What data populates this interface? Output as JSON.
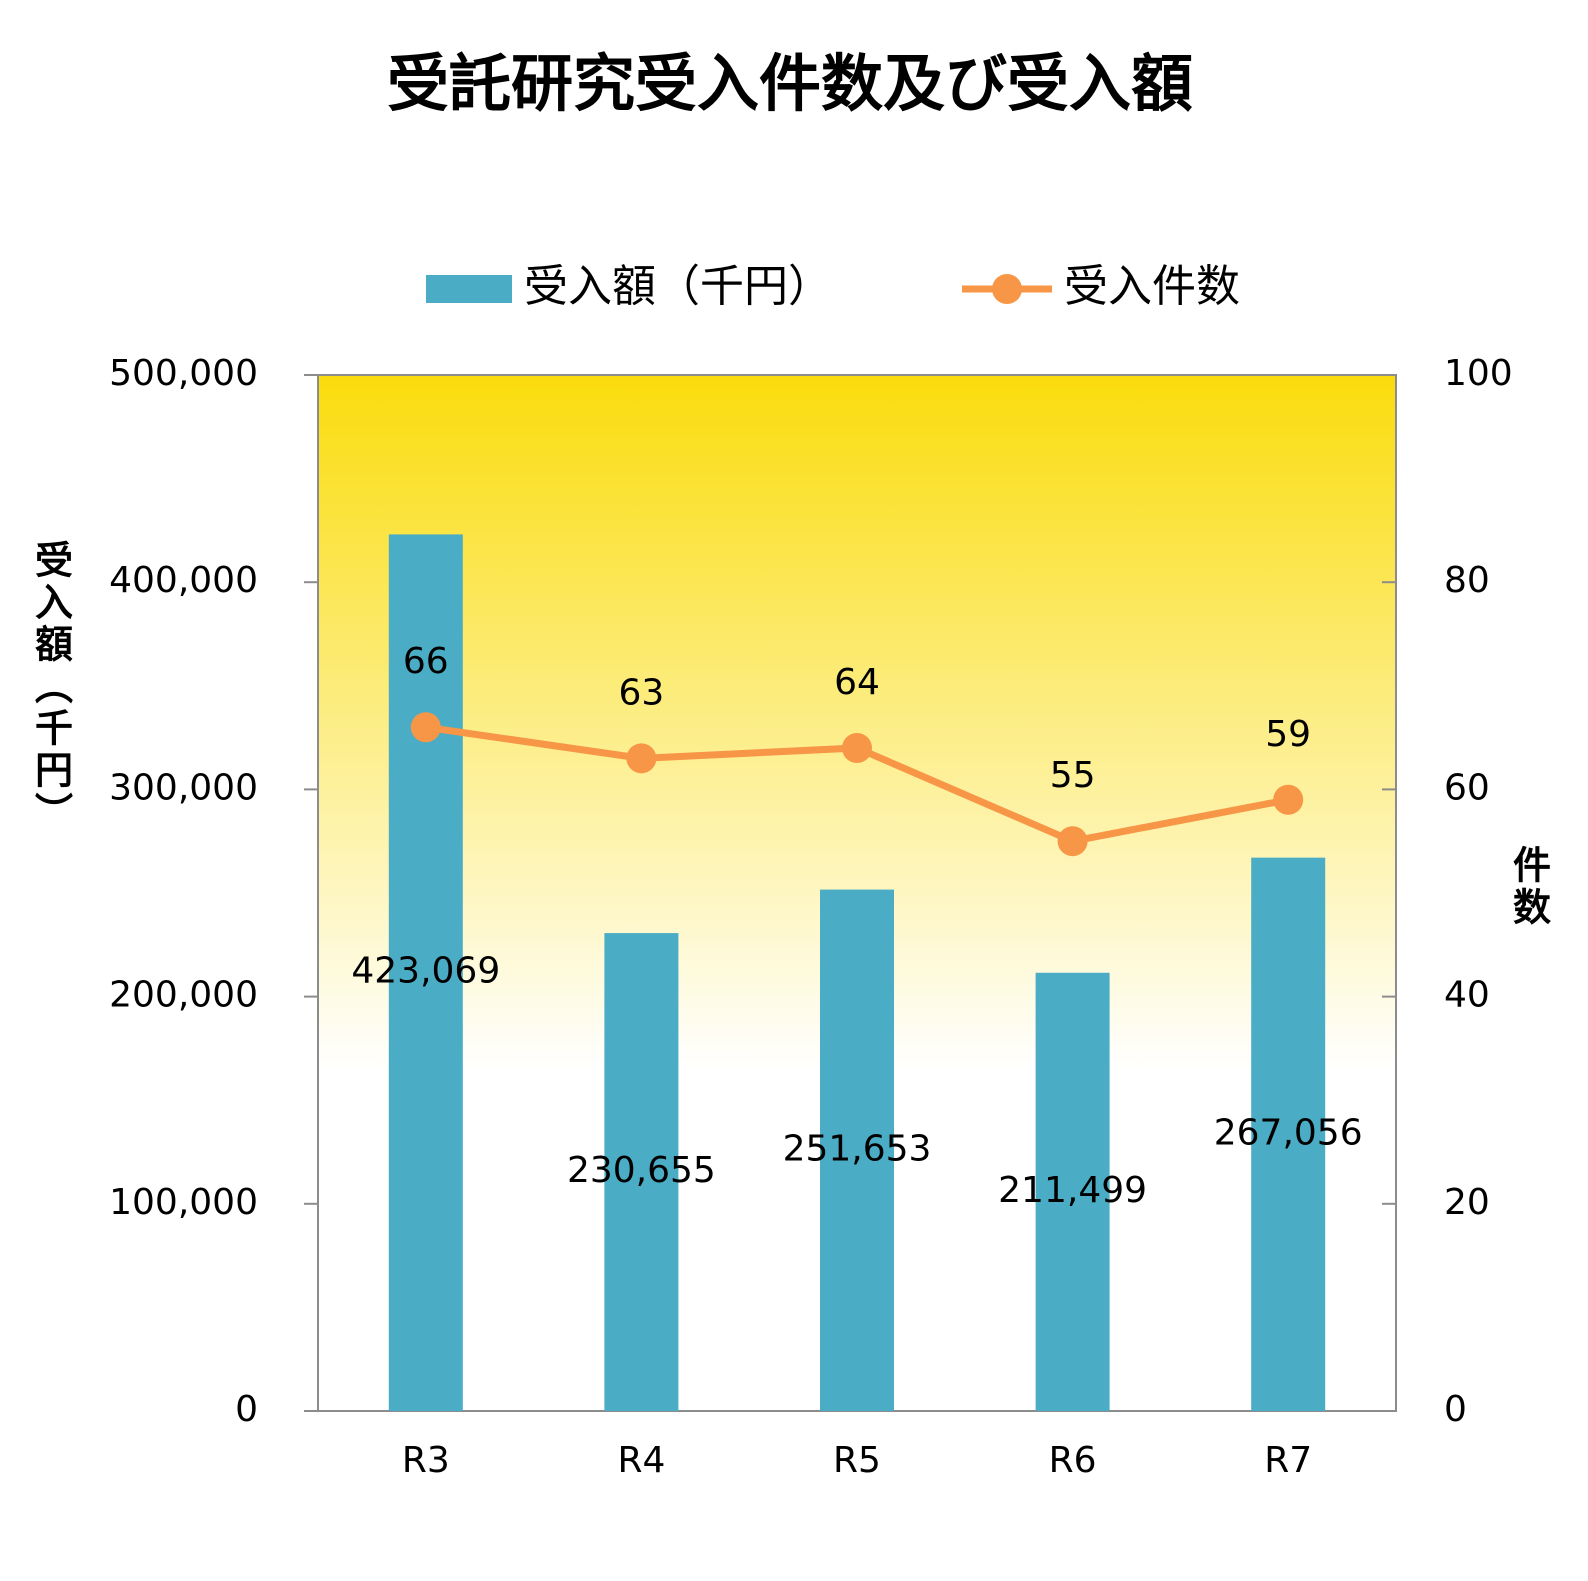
{
  "chart_data": {
    "type": "bar",
    "title": "受託研究受入件数及び受入額",
    "categories": [
      "R3",
      "R4",
      "R5",
      "R6",
      "R7"
    ],
    "series": [
      {
        "name": "受入額（千円）",
        "type": "bar",
        "color": "#4bacc6",
        "values": [
          423069,
          230655,
          251653,
          211499,
          267056
        ],
        "value_labels": [
          "423,069",
          "230,655",
          "251,653",
          "211,499",
          "267,056"
        ]
      },
      {
        "name": "受入件数",
        "type": "line",
        "axis": "y2",
        "color": "#f79646",
        "values": [
          66,
          63,
          64,
          55,
          59
        ]
      }
    ],
    "y_label": "受入額（千円）",
    "y2_label": "件数",
    "ylim": [
      0,
      500000
    ],
    "yticks": [
      0,
      {
        "value": 100000,
        "label": "100,000"
      },
      {
        "value": 200000,
        "label": "200,000"
      },
      {
        "value": 300000,
        "label": "300,000"
      },
      {
        "value": 400000,
        "label": "400,000"
      },
      {
        "value": 500000,
        "label": "500,000"
      }
    ],
    "y2lim": [
      0,
      100
    ],
    "y2ticks": [
      0,
      20,
      40,
      60,
      80,
      100
    ],
    "legend": "top"
  }
}
